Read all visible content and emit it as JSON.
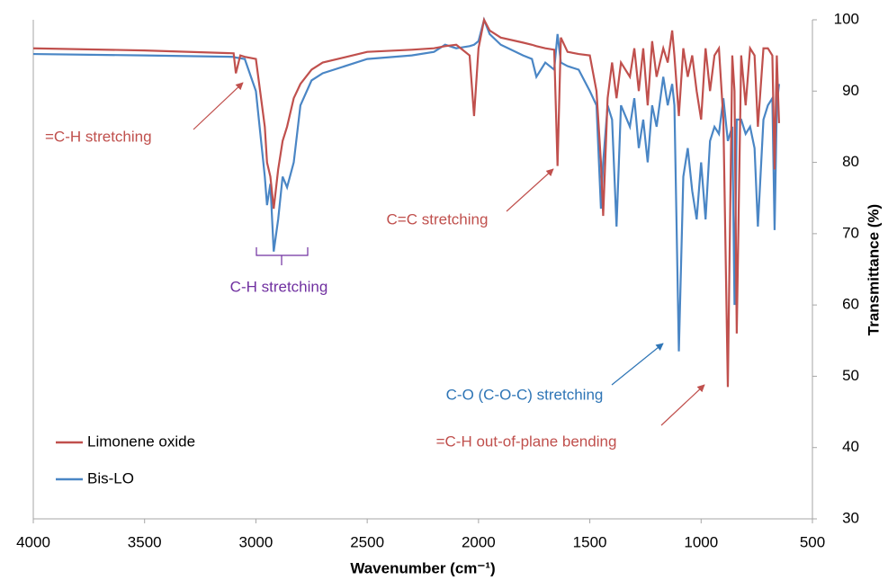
{
  "chart_data": {
    "type": "line",
    "xlabel": "Wavenumber (cm⁻¹)",
    "ylabel": "Transmittance (%)",
    "xlim": [
      4000,
      500
    ],
    "xticks": [
      4000,
      3500,
      3000,
      2500,
      2000,
      1500,
      1000,
      500
    ],
    "ylim": [
      30,
      100
    ],
    "yticks": [
      30,
      40,
      50,
      60,
      70,
      80,
      90,
      100
    ],
    "x": [
      4000,
      3500,
      3100,
      3090,
      3070,
      3050,
      3000,
      2960,
      2950,
      2935,
      2920,
      2900,
      2880,
      2860,
      2830,
      2800,
      2750,
      2700,
      2500,
      2300,
      2200,
      2150,
      2100,
      2040,
      2020,
      2000,
      1975,
      1950,
      1900,
      1800,
      1760,
      1740,
      1700,
      1660,
      1645,
      1630,
      1600,
      1550,
      1500,
      1470,
      1450,
      1440,
      1420,
      1400,
      1380,
      1360,
      1320,
      1300,
      1280,
      1260,
      1240,
      1220,
      1200,
      1170,
      1150,
      1130,
      1120,
      1100,
      1080,
      1060,
      1040,
      1020,
      1000,
      980,
      960,
      940,
      920,
      900,
      880,
      860,
      850,
      840,
      820,
      800,
      780,
      760,
      745,
      720,
      700,
      680,
      670,
      660,
      650
    ],
    "series": [
      {
        "name": "Limonene oxide",
        "color": "#c0504d",
        "values": [
          96,
          95.7,
          95.3,
          92.5,
          95,
          94.8,
          94.5,
          85,
          80,
          78,
          73.5,
          79,
          83,
          85,
          89,
          91,
          93,
          94,
          95.5,
          95.8,
          96,
          96.3,
          96.5,
          95,
          86.5,
          96,
          100,
          98.5,
          97.5,
          96.8,
          96.5,
          96.3,
          96,
          95.8,
          79.5,
          97.5,
          95.5,
          95.2,
          95,
          90,
          80,
          72.5,
          89,
          94,
          89,
          94,
          92,
          96,
          90,
          96,
          88,
          97,
          92,
          96,
          94,
          98.5,
          95,
          86.5,
          96,
          92,
          95,
          90,
          86,
          96,
          90,
          95,
          96,
          86,
          48.5,
          95,
          90,
          56,
          95,
          88,
          96,
          95,
          85,
          96,
          96,
          95,
          79,
          95,
          85.5
        ]
      },
      {
        "name": "Bis-LO",
        "color": "#4a86c5",
        "values": [
          95.2,
          95,
          94.8,
          94.7,
          94.6,
          94.5,
          90,
          78,
          74,
          77,
          67.5,
          72,
          78,
          76.5,
          80,
          88,
          91.5,
          92.5,
          94.5,
          95,
          95.5,
          96.5,
          96,
          96.3,
          96.5,
          97,
          100,
          98,
          96.5,
          95,
          94.5,
          92,
          94,
          93,
          98,
          94,
          93.5,
          93,
          90,
          88,
          73.5,
          80,
          88,
          86,
          71,
          88,
          85,
          89,
          82,
          86,
          80,
          88,
          85,
          92,
          88,
          91,
          88,
          53.5,
          78,
          82,
          76,
          72,
          80,
          72,
          83,
          85,
          84,
          89,
          83,
          85,
          60,
          86,
          86,
          84,
          85,
          82,
          71,
          86,
          88,
          89,
          70.5,
          88,
          91
        ]
      }
    ],
    "annotations": [
      {
        "text": "=C-H stretching",
        "color": "#c0504d"
      },
      {
        "text": "C-H stretching",
        "color": "#7030a0"
      },
      {
        "text": "C=C stretching",
        "color": "#c0504d"
      },
      {
        "text": "C-O (C-O-C) stretching",
        "color": "#2e75b6"
      },
      {
        "text": "=C-H out-of-plane bending",
        "color": "#c0504d"
      }
    ]
  }
}
